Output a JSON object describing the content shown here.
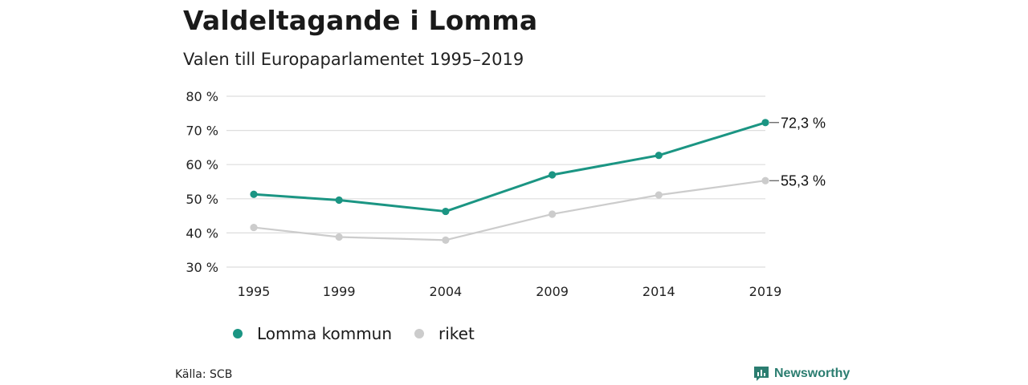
{
  "title": "Valdeltagande i Lomma",
  "subtitle": "Valen till Europaparlamentet 1995–2019",
  "source": "Källa: SCB",
  "brand": "Newsworthy",
  "colors": {
    "lomma": "#1b9583",
    "riket": "#cccccc",
    "grid": "#dddddd",
    "brand": "#2b7d70"
  },
  "icons": {
    "brand_logo": "bar-chart-speech-bubble-icon"
  },
  "legend": {
    "items": [
      {
        "label": "Lomma kommun",
        "series": 0
      },
      {
        "label": "riket",
        "series": 1
      }
    ]
  },
  "chart_data": {
    "type": "line",
    "title": "Valdeltagande i Lomma",
    "subtitle": "Valen till Europaparlamentet 1995–2019",
    "x": [
      1995,
      1999,
      2004,
      2009,
      2014,
      2019
    ],
    "x_tick_labels": [
      "1995",
      "1999",
      "2004",
      "2009",
      "2014",
      "2019"
    ],
    "ylim": [
      30,
      80
    ],
    "y_ticks": [
      30,
      40,
      50,
      60,
      70,
      80
    ],
    "y_tick_labels": [
      "30 %",
      "40 %",
      "50 %",
      "60 %",
      "70 %",
      "80 %"
    ],
    "grid": true,
    "legend_position": "bottom-left",
    "series": [
      {
        "name": "Lomma kommun",
        "values": [
          51.3,
          49.6,
          46.3,
          57.0,
          62.7,
          72.3
        ],
        "end_label": "72,3 %"
      },
      {
        "name": "riket",
        "values": [
          41.6,
          38.8,
          37.9,
          45.5,
          51.1,
          55.3
        ],
        "end_label": "55,3 %"
      }
    ]
  }
}
